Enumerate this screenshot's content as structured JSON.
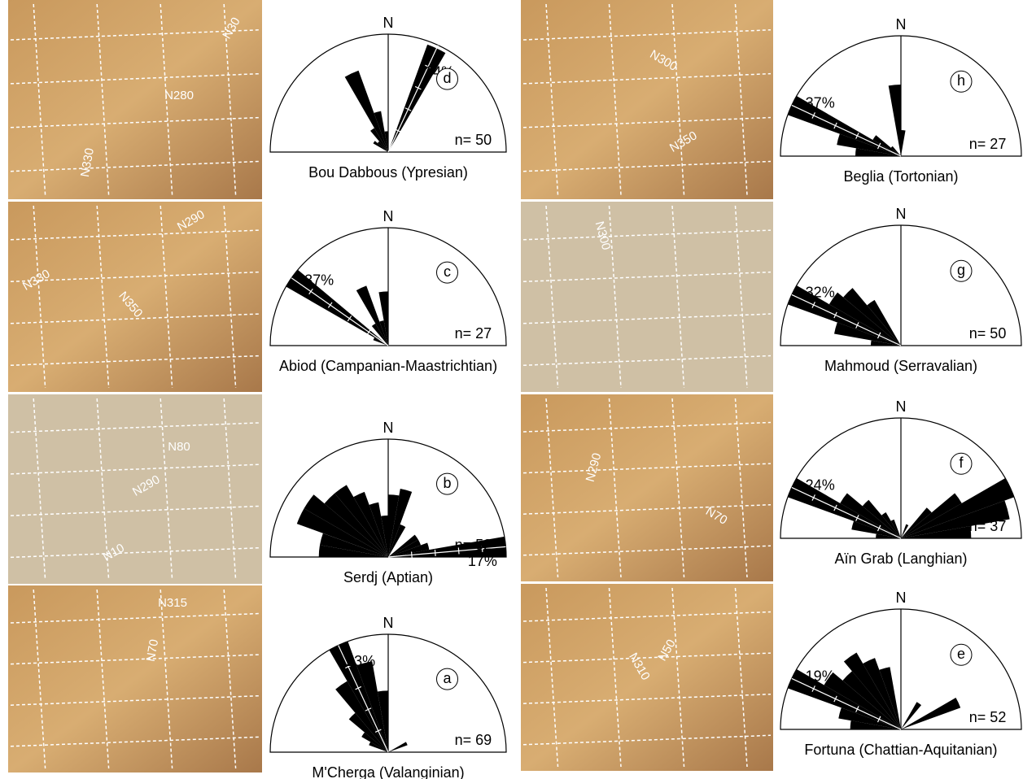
{
  "photos": [
    {
      "annotations": [
        "N30",
        "N280",
        "N330"
      ]
    },
    {
      "annotations": [
        "N290",
        "N330",
        "N350"
      ]
    },
    {
      "annotations": [
        "N80",
        "N290",
        "N10"
      ]
    },
    {
      "annotations": [
        "N315",
        "N70"
      ]
    },
    {
      "annotations": [
        "N300",
        "N350"
      ]
    },
    {
      "annotations": [
        "N300"
      ]
    },
    {
      "annotations": [
        "N290",
        "N70"
      ]
    },
    {
      "annotations": [
        "N50",
        "N310"
      ]
    }
  ],
  "roses": [
    {
      "letter": "d",
      "north": "N",
      "title": "Bou Dabbous (Ypresian)",
      "n": "n= 50",
      "scale": {
        "value": 34,
        "label": "34%"
      },
      "petals": [
        {
          "azimuth": 20,
          "percent": 33
        },
        {
          "azimuth": 350,
          "percent": 6
        },
        {
          "azimuth": 330,
          "percent": 25
        },
        {
          "azimuth": 340,
          "percent": 12
        },
        {
          "azimuth": 320,
          "percent": 8
        },
        {
          "azimuth": 310,
          "percent": 4
        },
        {
          "azimuth": 300,
          "percent": 5
        }
      ]
    },
    {
      "letter": "c",
      "north": "N",
      "title": "Abiod (Campanian-Maastrichtian)",
      "n": "n= 27",
      "scale": {
        "value": 37,
        "label": "37%"
      },
      "petals": [
        {
          "azimuth": 300,
          "percent": 37
        },
        {
          "azimuth": 330,
          "percent": 20
        },
        {
          "azimuth": 350,
          "percent": 17
        },
        {
          "azimuth": 320,
          "percent": 8
        },
        {
          "azimuth": 340,
          "percent": 8
        },
        {
          "azimuth": 290,
          "percent": 5
        }
      ]
    },
    {
      "letter": "b",
      "north": "N",
      "title": "Serdj (Aptian)",
      "n": "n= 52",
      "scale": {
        "value": 17,
        "label": "17%"
      },
      "petals": [
        {
          "azimuth": 80,
          "percent": 17
        },
        {
          "azimuth": 70,
          "percent": 6
        },
        {
          "azimuth": 60,
          "percent": 5
        },
        {
          "azimuth": 50,
          "percent": 5
        },
        {
          "azimuth": 20,
          "percent": 5
        },
        {
          "azimuth": 10,
          "percent": 10
        },
        {
          "azimuth": 0,
          "percent": 9
        },
        {
          "azimuth": 350,
          "percent": 6
        },
        {
          "azimuth": 340,
          "percent": 8
        },
        {
          "azimuth": 330,
          "percent": 10
        },
        {
          "azimuth": 320,
          "percent": 12
        },
        {
          "azimuth": 310,
          "percent": 12
        },
        {
          "azimuth": 300,
          "percent": 14
        },
        {
          "azimuth": 290,
          "percent": 14
        },
        {
          "azimuth": 280,
          "percent": 10
        },
        {
          "azimuth": 270,
          "percent": 10
        }
      ]
    },
    {
      "letter": "a",
      "north": "N",
      "title": "M'Cherga (Valanginian)",
      "n": "n= 69",
      "scale": {
        "value": 23,
        "label": "23%"
      },
      "petals": [
        {
          "azimuth": 330,
          "percent": 23
        },
        {
          "azimuth": 340,
          "percent": 18
        },
        {
          "azimuth": 320,
          "percent": 16
        },
        {
          "azimuth": 350,
          "percent": 12
        },
        {
          "azimuth": 310,
          "percent": 10
        },
        {
          "azimuth": 300,
          "percent": 6
        },
        {
          "azimuth": 290,
          "percent": 4
        },
        {
          "azimuth": 60,
          "percent": 4
        }
      ]
    },
    {
      "letter": "h",
      "north": "N",
      "title": "Beglia (Tortonian)",
      "n": "n= 27",
      "scale": {
        "value": 37,
        "label": "37%"
      },
      "petals": [
        {
          "azimuth": 290,
          "percent": 37
        },
        {
          "azimuth": 280,
          "percent": 20
        },
        {
          "azimuth": 270,
          "percent": 14
        },
        {
          "azimuth": 300,
          "percent": 10
        },
        {
          "azimuth": 310,
          "percent": 4
        },
        {
          "azimuth": 350,
          "percent": 22
        },
        {
          "azimuth": 0,
          "percent": 8
        }
      ]
    },
    {
      "letter": "g",
      "north": "N",
      "title": "Mahmoud (Serravalian)",
      "n": "n= 50",
      "scale": {
        "value": 32,
        "label": "32%"
      },
      "petals": [
        {
          "azimuth": 290,
          "percent": 32
        },
        {
          "azimuth": 300,
          "percent": 22
        },
        {
          "azimuth": 310,
          "percent": 20
        },
        {
          "azimuth": 320,
          "percent": 14
        },
        {
          "azimuth": 280,
          "percent": 18
        },
        {
          "azimuth": 270,
          "percent": 8
        }
      ]
    },
    {
      "letter": "f",
      "north": "N",
      "title": "Aïn Grab (Langhian)",
      "n": "n= 37",
      "scale": {
        "value": 24,
        "label": "24%"
      },
      "petals": [
        {
          "azimuth": 290,
          "percent": 24
        },
        {
          "azimuth": 300,
          "percent": 14
        },
        {
          "azimuth": 280,
          "percent": 10
        },
        {
          "azimuth": 310,
          "percent": 10
        },
        {
          "azimuth": 320,
          "percent": 6
        },
        {
          "azimuth": 330,
          "percent": 4
        },
        {
          "azimuth": 270,
          "percent": 5
        },
        {
          "azimuth": 60,
          "percent": 24
        },
        {
          "azimuth": 70,
          "percent": 22
        },
        {
          "azimuth": 50,
          "percent": 14
        },
        {
          "azimuth": 80,
          "percent": 14
        },
        {
          "azimuth": 40,
          "percent": 8
        },
        {
          "azimuth": 20,
          "percent": 3
        }
      ]
    },
    {
      "letter": "e",
      "north": "N",
      "title": "Fortuna (Chattian-Aquitanian)",
      "n": "n= 52",
      "scale": {
        "value": 19,
        "label": "19%"
      },
      "petals": [
        {
          "azimuth": 290,
          "percent": 19
        },
        {
          "azimuth": 300,
          "percent": 14
        },
        {
          "azimuth": 310,
          "percent": 12
        },
        {
          "azimuth": 320,
          "percent": 14
        },
        {
          "azimuth": 330,
          "percent": 12
        },
        {
          "azimuth": 340,
          "percent": 10
        },
        {
          "azimuth": 280,
          "percent": 10
        },
        {
          "azimuth": 270,
          "percent": 8
        },
        {
          "azimuth": 60,
          "percent": 10
        },
        {
          "azimuth": 30,
          "percent": 5
        }
      ]
    }
  ]
}
